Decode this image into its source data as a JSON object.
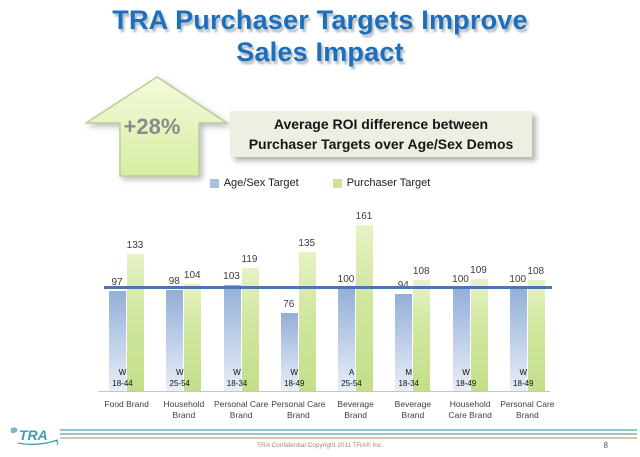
{
  "slide": {
    "title_line1": "TRA Purchaser Targets Improve",
    "title_line2": "Sales Impact",
    "arrow": {
      "label": "+28%"
    },
    "callout": {
      "line1": "Average ROI difference between",
      "line2": "Purchaser Targets over Age/Sex Demos"
    }
  },
  "chart_data": {
    "type": "bar",
    "title": "",
    "legend_position": "top",
    "grid": false,
    "ylim": [
      0,
      175
    ],
    "reference_line": 100,
    "series": [
      {
        "name": "Age/Sex Target",
        "color": "#a9c0e2",
        "values": [
          97,
          98,
          103,
          76,
          100,
          94,
          100,
          100
        ]
      },
      {
        "name": "Purchaser Target",
        "color": "#cbe395",
        "values": [
          133,
          104,
          119,
          135,
          161,
          108,
          109,
          108
        ]
      }
    ],
    "categories": [
      {
        "demo": [
          "W",
          "18-44"
        ],
        "brand": [
          "Food Brand"
        ]
      },
      {
        "demo": [
          "W",
          "25-54"
        ],
        "brand": [
          "Household",
          "Brand"
        ]
      },
      {
        "demo": [
          "W",
          "18-34"
        ],
        "brand": [
          "Personal Care",
          "Brand"
        ]
      },
      {
        "demo": [
          "W",
          "18-49"
        ],
        "brand": [
          "Personal Care",
          "Brand"
        ]
      },
      {
        "demo": [
          "A",
          "25-54"
        ],
        "brand": [
          "Beverage",
          "Brand"
        ]
      },
      {
        "demo": [
          "M",
          "18-34"
        ],
        "brand": [
          "Beverage",
          "Brand"
        ]
      },
      {
        "demo": [
          "W",
          "18-49"
        ],
        "brand": [
          "Household",
          "Care Brand"
        ]
      },
      {
        "demo": [
          "W",
          "18-49"
        ],
        "brand": [
          "Personal Care",
          "Brand"
        ]
      }
    ]
  },
  "footer": {
    "logo_text": "TRA",
    "copyright": "TRA Confidential Copyright  2011 TRA® Inc.",
    "page_number": "8"
  },
  "colors": {
    "title_blue": "#1b6fbd",
    "agesex_bar": "#a9c0e2",
    "purchaser_bar": "#cbe395",
    "reference_line": "#4a77ad",
    "arrow_fill_top": "#f2f9d9",
    "arrow_fill_bottom": "#d7eda2",
    "callout_bg": "#eeeee2",
    "footer_teal": "#8fc6cf",
    "footer_tan": "#dcc3a5"
  }
}
